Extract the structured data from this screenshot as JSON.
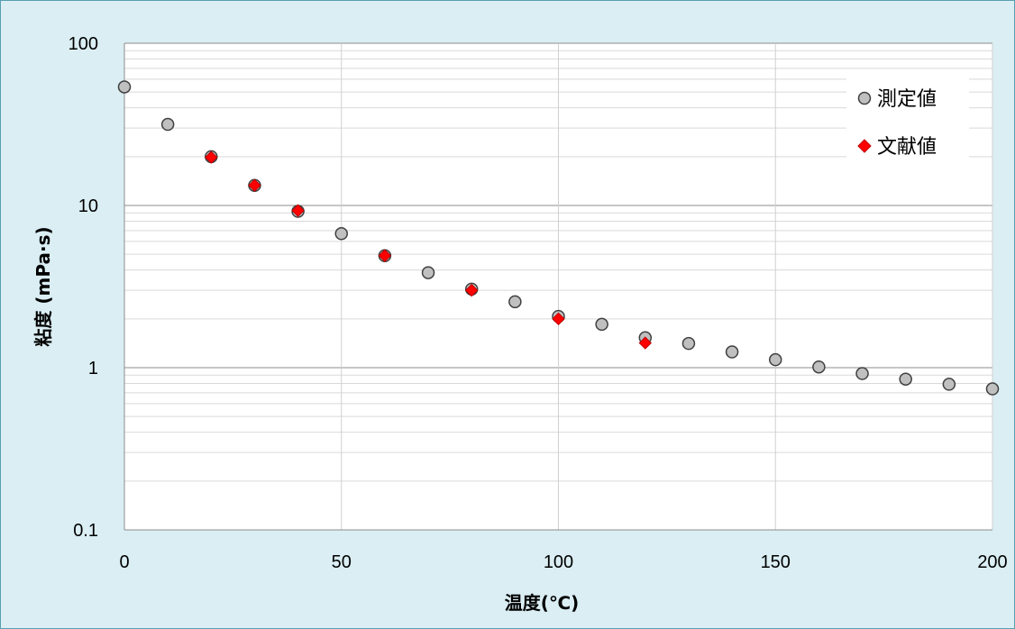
{
  "chart_data": {
    "type": "scatter",
    "xlabel": "温度(℃)",
    "ylabel": "粘度 (mPa·s)",
    "xlim": [
      0,
      200
    ],
    "ylim": [
      0.1,
      100
    ],
    "yscale": "log",
    "x_ticks": [
      "0",
      "50",
      "100",
      "150",
      "200"
    ],
    "y_ticks": [
      "0.1",
      "1",
      "10",
      "100"
    ],
    "x_tick_values": [
      0,
      50,
      100,
      150,
      200
    ],
    "y_tick_values": [
      0.1,
      1,
      10,
      100
    ],
    "grid": true,
    "legend_position": "top-right",
    "series": [
      {
        "name": "測定値",
        "marker": "circle",
        "color": "#c0c0c0",
        "x": [
          0,
          10,
          20,
          30,
          40,
          50,
          60,
          70,
          80,
          90,
          100,
          110,
          120,
          130,
          140,
          150,
          160,
          170,
          180,
          190,
          200
        ],
        "y": [
          53.8,
          31.6,
          20.0,
          13.3,
          9.2,
          6.7,
          4.9,
          3.85,
          3.05,
          2.55,
          2.07,
          1.85,
          1.53,
          1.41,
          1.25,
          1.12,
          1.01,
          0.92,
          0.85,
          0.79,
          0.74
        ]
      },
      {
        "name": "文献値",
        "marker": "diamond",
        "color": "#ff0000",
        "x": [
          20,
          30,
          40,
          60,
          80,
          100,
          120
        ],
        "y": [
          19.8,
          13.3,
          9.3,
          4.9,
          3.0,
          2.0,
          1.42
        ]
      }
    ]
  }
}
